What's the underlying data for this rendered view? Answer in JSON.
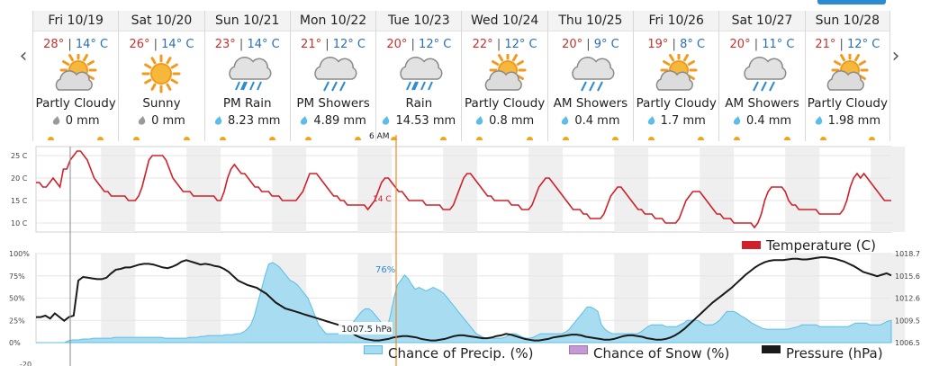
{
  "days": [
    {
      "name": "Fri 10/19",
      "hi": "28°",
      "lo": "14° C",
      "icon": "partly-cloudy-icon",
      "cond": "Partly Cloudy",
      "precip": "0 mm",
      "drop": "gray"
    },
    {
      "name": "Sat 10/20",
      "hi": "26°",
      "lo": "14° C",
      "icon": "sunny-icon",
      "cond": "Sunny",
      "precip": "0 mm",
      "drop": "gray"
    },
    {
      "name": "Sun 10/21",
      "hi": "23°",
      "lo": "14° C",
      "icon": "rain-icon",
      "cond": "PM Rain",
      "precip": "8.23 mm",
      "drop": "blue"
    },
    {
      "name": "Mon 10/22",
      "hi": "21°",
      "lo": "12° C",
      "icon": "showers-icon",
      "cond": "PM Showers",
      "precip": "4.89 mm",
      "drop": "blue"
    },
    {
      "name": "Tue 10/23",
      "hi": "20°",
      "lo": "12° C",
      "icon": "rain-icon",
      "cond": "Rain",
      "precip": "14.53 mm",
      "drop": "blue"
    },
    {
      "name": "Wed 10/24",
      "hi": "22°",
      "lo": "12° C",
      "icon": "partly-cloudy-icon",
      "cond": "Partly Cloudy",
      "precip": "0.8 mm",
      "drop": "blue"
    },
    {
      "name": "Thu 10/25",
      "hi": "20°",
      "lo": "9° C",
      "icon": "showers-icon",
      "cond": "AM Showers",
      "precip": "0.4 mm",
      "drop": "blue"
    },
    {
      "name": "Fri 10/26",
      "hi": "19°",
      "lo": "8° C",
      "icon": "partly-cloudy-icon",
      "cond": "Partly Cloudy",
      "precip": "1.7 mm",
      "drop": "blue"
    },
    {
      "name": "Sat 10/27",
      "hi": "20°",
      "lo": "11° C",
      "icon": "showers-icon",
      "cond": "AM Showers",
      "precip": "0.4 mm",
      "drop": "blue"
    },
    {
      "name": "Sun 10/28",
      "hi": "21°",
      "lo": "12° C",
      "icon": "partly-cloudy-icon",
      "cond": "Partly Cloudy",
      "precip": "1.98 mm",
      "drop": "blue"
    }
  ],
  "nav": {
    "prev": "‹",
    "next": "›"
  },
  "cursor": {
    "time_label": "6 AM",
    "temp_label": "14 C",
    "precip_label": "76%",
    "pressure_label": "1007.5 hPa"
  },
  "colors": {
    "temperature": "#d0202a",
    "precip": "#a8dcf0",
    "precip_stroke": "#5bbde8",
    "snow": "#c59ad4",
    "pressure": "#1a1a1a",
    "cursor": "#f08a24",
    "hi": "#c9302c",
    "lo": "#2a6fb8"
  },
  "legend": {
    "temperature": "Temperature (C)",
    "precip": "Chance of Precip. (%)",
    "snow": "Chance of Snow (%)",
    "pressure": "Pressure (hPa)"
  },
  "chart_data": [
    {
      "type": "line",
      "title": "",
      "ylabel": "",
      "y_ticks": [
        "25 C",
        "20 C",
        "15 C",
        "10 C"
      ],
      "ylim": [
        8,
        27
      ],
      "series": [
        {
          "name": "Temperature (C)",
          "unit": "C",
          "values": [
            19,
            19,
            18,
            18,
            19,
            20,
            19,
            18,
            22,
            22,
            24,
            25,
            26,
            26,
            25,
            24,
            22,
            20,
            19,
            18,
            17,
            17,
            16,
            16,
            16,
            16,
            16,
            15,
            15,
            15,
            16,
            18,
            21,
            24,
            25,
            25,
            25,
            25,
            24,
            22,
            20,
            19,
            18,
            17,
            17,
            17,
            16,
            16,
            16,
            16,
            16,
            16,
            16,
            15,
            15,
            17,
            20,
            22,
            23,
            22,
            21,
            21,
            20,
            19,
            18,
            18,
            17,
            17,
            17,
            16,
            16,
            16,
            15,
            15,
            15,
            15,
            15,
            16,
            17,
            19,
            21,
            21,
            21,
            20,
            19,
            18,
            17,
            16,
            16,
            15,
            15,
            14,
            14,
            14,
            14,
            14,
            14,
            13,
            14,
            15,
            17,
            19,
            20,
            20,
            19,
            18,
            17,
            17,
            16,
            15,
            15,
            15,
            15,
            15,
            14,
            14,
            14,
            14,
            14,
            13,
            13,
            13,
            14,
            16,
            18,
            20,
            21,
            21,
            20,
            19,
            18,
            17,
            16,
            16,
            15,
            15,
            15,
            15,
            15,
            14,
            14,
            14,
            13,
            13,
            13,
            14,
            16,
            18,
            19,
            20,
            20,
            19,
            18,
            17,
            16,
            15,
            14,
            13,
            13,
            13,
            12,
            12,
            11,
            11,
            11,
            11,
            12,
            14,
            16,
            17,
            18,
            18,
            17,
            16,
            15,
            14,
            13,
            13,
            12,
            12,
            12,
            11,
            11,
            11,
            10,
            10,
            10,
            10,
            11,
            13,
            15,
            16,
            17,
            17,
            17,
            16,
            15,
            14,
            13,
            12,
            12,
            11,
            11,
            11,
            10,
            10,
            10,
            10,
            10,
            10,
            9,
            10,
            12,
            15,
            17,
            18,
            18,
            18,
            18,
            17,
            15,
            14,
            14,
            13,
            13,
            13,
            13,
            13,
            13,
            12,
            12,
            12,
            12,
            12,
            12,
            12,
            13,
            15,
            18,
            20,
            21,
            20,
            21,
            20,
            19,
            18,
            17,
            16,
            15,
            15,
            15
          ]
        }
      ]
    },
    {
      "type": "area",
      "title": "",
      "y_ticks": [
        "100%",
        "75%",
        "50%",
        "25%",
        "0%",
        "-20"
      ],
      "y2_ticks": [
        "1018.7",
        "1015.6",
        "1012.6",
        "1009.5",
        "1006.5"
      ],
      "ylim": [
        0,
        100
      ],
      "y2lim": [
        1006.5,
        1018.7
      ],
      "series": [
        {
          "name": "Chance of Precip. (%)",
          "unit": "%",
          "values": [
            0,
            0,
            0,
            0,
            0,
            0,
            0,
            0,
            0,
            2,
            3,
            3,
            3,
            4,
            4,
            4,
            5,
            5,
            5,
            5,
            5,
            5,
            6,
            6,
            6,
            6,
            6,
            6,
            6,
            6,
            6,
            6,
            6,
            6,
            6,
            6,
            5,
            5,
            5,
            5,
            5,
            5,
            5,
            6,
            6,
            6,
            7,
            7,
            8,
            8,
            8,
            8,
            8,
            9,
            9,
            9,
            10,
            10,
            12,
            15,
            20,
            30,
            45,
            60,
            75,
            88,
            90,
            88,
            85,
            80,
            75,
            70,
            68,
            65,
            60,
            55,
            50,
            40,
            30,
            20,
            15,
            10,
            10,
            10,
            10,
            10,
            10,
            15,
            20,
            25,
            30,
            35,
            38,
            38,
            35,
            30,
            25,
            20,
            15,
            30,
            50,
            65,
            70,
            76,
            72,
            65,
            60,
            62,
            60,
            58,
            60,
            62,
            60,
            58,
            55,
            50,
            45,
            40,
            35,
            30,
            25,
            20,
            15,
            10,
            8,
            6,
            5,
            5,
            5,
            5,
            5,
            6,
            8,
            10,
            10,
            8,
            6,
            5,
            5,
            6,
            8,
            10,
            10,
            10,
            10,
            10,
            10,
            10,
            12,
            15,
            20,
            25,
            30,
            35,
            40,
            40,
            38,
            35,
            20,
            15,
            12,
            10,
            10,
            10,
            10,
            10,
            10,
            10,
            10,
            12,
            15,
            18,
            20,
            20,
            20,
            20,
            18,
            18,
            18,
            18,
            20,
            22,
            25,
            25,
            25,
            25,
            22,
            20,
            20,
            20,
            22,
            25,
            30,
            35,
            35,
            35,
            33,
            30,
            28,
            25,
            22,
            20,
            18,
            16,
            15,
            15,
            15,
            15,
            15,
            15,
            15,
            16,
            17,
            18,
            20,
            20,
            20,
            20,
            20,
            18,
            18,
            18,
            18,
            18,
            18,
            18,
            18,
            18,
            20,
            22,
            22,
            22,
            22,
            20,
            20,
            20,
            20,
            22,
            24,
            25
          ]
        },
        {
          "name": "Chance of Snow (%)",
          "unit": "%",
          "values": []
        },
        {
          "name": "Pressure (hPa)",
          "unit": "hPa",
          "values": [
            1010,
            1010,
            1010.2,
            1009.8,
            1010.5,
            1010,
            1009.5,
            1010,
            1010.2,
            1015,
            1015.5,
            1015.4,
            1015.3,
            1015.2,
            1015.2,
            1015.4,
            1016,
            1016.5,
            1016.6,
            1016.8,
            1016.8,
            1017,
            1017.2,
            1017.3,
            1017.3,
            1017.2,
            1017,
            1016.8,
            1016.7,
            1016.9,
            1017.2,
            1017.6,
            1017.8,
            1017.6,
            1017.4,
            1017.2,
            1017.3,
            1017.2,
            1017,
            1016.9,
            1016.6,
            1016.2,
            1015.6,
            1015,
            1014.7,
            1014.4,
            1014.2,
            1014,
            1013.6,
            1013.2,
            1012.6,
            1012,
            1011.6,
            1011.2,
            1011,
            1010.8,
            1010.6,
            1010.4,
            1010.2,
            1010,
            1009.8,
            1009.6,
            1009.4,
            1009.2,
            1009,
            1008.8,
            1008.4,
            1008,
            1007.5,
            1007.2,
            1007,
            1006.9,
            1006.8,
            1006.8,
            1006.9,
            1007,
            1007.2,
            1007.3,
            1007.4,
            1007.4,
            1007.3,
            1007.2,
            1007,
            1006.9,
            1006.8,
            1006.8,
            1006.9,
            1007,
            1007.2,
            1007.4,
            1007.5,
            1007.5,
            1007.4,
            1007.3,
            1007.2,
            1007.1,
            1007.1,
            1007.2,
            1007.4,
            1007.5,
            1007.7,
            1007.6,
            1007.4,
            1007.2,
            1007,
            1006.9,
            1006.8,
            1006.8,
            1006.9,
            1007,
            1007.2,
            1007.3,
            1007.4,
            1007.5,
            1007.6,
            1007.6,
            1007.5,
            1007.3,
            1007.2,
            1007.1,
            1007,
            1006.9,
            1006.9,
            1007,
            1007.2,
            1007.4,
            1007.5,
            1007.5,
            1007.4,
            1007.3,
            1007.1,
            1007,
            1006.9,
            1006.9,
            1007,
            1007.2,
            1007.5,
            1007.9,
            1008.4,
            1009,
            1009.6,
            1010.2,
            1010.8,
            1011.4,
            1012,
            1012.5,
            1013,
            1013.5,
            1014,
            1014.6,
            1015.2,
            1015.8,
            1016.3,
            1016.8,
            1017.2,
            1017.5,
            1017.7,
            1017.8,
            1017.8,
            1017.8,
            1017.9,
            1018,
            1018,
            1017.9,
            1017.9,
            1018,
            1018.1,
            1018.2,
            1018.2,
            1018.1,
            1018,
            1017.8,
            1017.6,
            1017.3,
            1017,
            1016.6,
            1016.2,
            1016,
            1015.8,
            1015.6,
            1015.8,
            1016,
            1015.7
          ]
        }
      ]
    }
  ]
}
